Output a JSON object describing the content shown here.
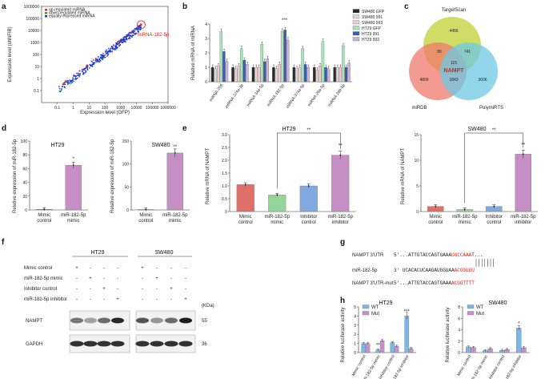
{
  "panel_labels": [
    "a",
    "b",
    "c",
    "d",
    "e",
    "f",
    "g",
    "h"
  ],
  "colors": {
    "sw480_gfp": "#2b2b2b",
    "sw480_991": "#d8d8d8",
    "sw480_993": "#f5c6d0",
    "ht29_gfp": "#a7e3b4",
    "ht29_991": "#3a5fa8",
    "ht29_993": "#c9b3d9",
    "mimic_ctrl": "#e0706a",
    "mimic": "#94d49a",
    "inhib_ctrl": "#7fa9df",
    "inhib": "#c58fc6",
    "wt": "#7fb6e8",
    "mut": "#c98fcf",
    "up": "#e0312e",
    "down": "#3a9a3a",
    "unch": "#1f3bd6",
    "venn_ts": "#c8d64a",
    "venn_db": "#f07a6c",
    "venn_pr": "#6ec8e6",
    "red": "#e0211b"
  },
  "chart_data": [
    {
      "panel": "a",
      "type": "scatter",
      "xlabel": "Expression level (GFP)",
      "ylabel": "Expression level (shNFIB)",
      "xlim": [
        0.01,
        1000000
      ],
      "ylim": [
        0.01,
        1000000
      ],
      "xticks": [
        "0.1",
        "1",
        "10",
        "100",
        "1000",
        "10000",
        "100000",
        "1000000"
      ],
      "yticks": [
        "0.1",
        "1",
        "10",
        "100",
        "1000",
        "10000",
        "100000",
        "1000000"
      ],
      "legend": [
        "up-regulated miRNA",
        "down-regulated miRNA",
        "equally expressed miRNA"
      ],
      "annotation": "miRNA-182-5p",
      "highlight": {
        "x": 20000,
        "y": 30000
      }
    },
    {
      "panel": "b",
      "type": "bar",
      "ylabel": "Relative mRNA of miRNA",
      "ylim": [
        0,
        4
      ],
      "yticks": [
        "0",
        "1",
        "2",
        "3",
        "4"
      ],
      "categories": [
        "miRNA-206",
        "miRNA-374a-3p",
        "miRNA-34a-5p",
        "miRNA-182-5p",
        "miRNA-374a-5p",
        "miRNA-26a-5p",
        "miRNA-26b-5p"
      ],
      "series": [
        {
          "name": "SW480 GFP",
          "values": [
            1,
            1,
            1,
            1,
            1,
            1,
            1
          ]
        },
        {
          "name": "SW480 991",
          "values": [
            0.9,
            0.9,
            1.0,
            0.9,
            0.9,
            0.8,
            1.0
          ]
        },
        {
          "name": "SW480 993",
          "values": [
            1.1,
            1.1,
            1.0,
            1.2,
            1.0,
            1.1,
            1.0
          ]
        },
        {
          "name": "HT29 GFP",
          "values": [
            3.5,
            2.3,
            2.6,
            3.5,
            2.3,
            2.8,
            2.5
          ]
        },
        {
          "name": "HT29 991",
          "values": [
            2.1,
            1.5,
            1.4,
            3.6,
            1.2,
            1.0,
            1.0
          ]
        },
        {
          "name": "HT29 993",
          "values": [
            1.4,
            1.2,
            1.6,
            2.9,
            1.0,
            0.9,
            1.3
          ]
        }
      ],
      "significance": "***"
    },
    {
      "panel": "c",
      "type": "venn",
      "sets": [
        "TargetScan",
        "miRDB",
        "PolymiRTS"
      ],
      "counts": {
        "ts_only": "4456",
        "db_only": "4809",
        "pr_only": "3606",
        "ts_db": "80",
        "ts_pr": "741",
        "db_pr": "1843",
        "center": "115"
      },
      "center_label": "NAMPT"
    },
    {
      "panel": "d",
      "type": "bar",
      "title": "HT29",
      "ylabel": "Relative expression of miR-182-5p",
      "ylim": [
        0,
        100
      ],
      "yticks": [
        "0",
        "20",
        "40",
        "60",
        "80",
        "100"
      ],
      "categories": [
        "Mimic control",
        "miR-182-5p mimic"
      ],
      "values": [
        1,
        65
      ],
      "significance": "*"
    },
    {
      "panel": "d2",
      "type": "bar",
      "title": "SW480",
      "ylabel": "Relative expression of miR-182-5p",
      "ylim": [
        0,
        150
      ],
      "yticks": [
        "0",
        "50",
        "100",
        "150"
      ],
      "categories": [
        "Mimic control",
        "miR-182-5p mimic"
      ],
      "values": [
        1,
        124
      ],
      "significance": "**"
    },
    {
      "panel": "e",
      "type": "bar",
      "title": "HT29",
      "ylabel": "Relative mRNA of NAMPT",
      "ylim": [
        0,
        3.0
      ],
      "yticks": [
        "0",
        "0.5",
        "1.0",
        "1.5",
        "2.0",
        "2.5",
        "3.0"
      ],
      "categories": [
        "Mimic control",
        "miR-182-5p mimic",
        "Inhibitor control",
        "miR-182-5p inhibitor"
      ],
      "values": [
        1.05,
        0.65,
        1.0,
        2.2
      ],
      "significance": "**"
    },
    {
      "panel": "e2",
      "type": "bar",
      "title": "SW480",
      "ylabel": "Relative mRNA of NAMPT",
      "ylim": [
        0,
        15
      ],
      "yticks": [
        "0",
        "5",
        "10",
        "15"
      ],
      "categories": [
        "Mimic control",
        "miR-182-5p mimic",
        "Inhibitor control",
        "miR-182-5p inhibitor"
      ],
      "values": [
        1.0,
        0.4,
        1.0,
        11.2
      ],
      "significance": "**"
    },
    {
      "panel": "h",
      "type": "bar",
      "title": "HT29",
      "ylabel": "Relative luciferase activity",
      "ylim": [
        0,
        5
      ],
      "yticks": [
        "0",
        "1",
        "2",
        "3",
        "4",
        "5"
      ],
      "categories": [
        "Mimic control",
        "miR-182-5p mimic",
        "Inhibitor control",
        "miR-182-5p inhibitor"
      ],
      "series": [
        {
          "name": "WT",
          "values": [
            1.0,
            0.3,
            1.1,
            4.0
          ]
        },
        {
          "name": "Mut",
          "values": [
            1.0,
            1.3,
            0.7,
            0.45
          ]
        }
      ],
      "significance": [
        "**",
        "***"
      ]
    },
    {
      "panel": "h2",
      "type": "bar",
      "title": "SW480",
      "ylabel": "Relative luciferase activity",
      "ylim": [
        0,
        8
      ],
      "yticks": [
        "0",
        "2",
        "4",
        "6",
        "8"
      ],
      "categories": [
        "Mimic control",
        "miR-182-5p mimic",
        "Inhibitor control",
        "miR-182-5p inhibitor"
      ],
      "series": [
        {
          "name": "WT",
          "values": [
            1.0,
            0.35,
            0.4,
            4.3
          ]
        },
        {
          "name": "Mut",
          "values": [
            0.9,
            0.7,
            0.55,
            0.85
          ]
        }
      ],
      "significance": [
        "*"
      ]
    }
  ],
  "western": {
    "groups": [
      "HT29",
      "SW480"
    ],
    "rows": [
      {
        "label": "Mimic control",
        "marks": [
          "+",
          "-",
          "-",
          "-",
          "+",
          "-",
          "-",
          "-"
        ]
      },
      {
        "label": "miR-182-5p mimic",
        "marks": [
          "-",
          "+",
          "-",
          "-",
          "-",
          "+",
          "-",
          "-"
        ]
      },
      {
        "label": "Inhibitor control",
        "marks": [
          "-",
          "-",
          "+",
          "-",
          "-",
          "-",
          "+",
          "-"
        ]
      },
      {
        "label": "miR-182-5p inhibitor",
        "marks": [
          "-",
          "-",
          "-",
          "+",
          "-",
          "-",
          "-",
          "+"
        ]
      }
    ],
    "kda_label": "(KDa)",
    "bands": [
      {
        "label": "NAMPT",
        "kda": "55"
      },
      {
        "label": "GAPDH",
        "kda": "36"
      }
    ]
  },
  "sequences": {
    "row1": {
      "label": "NAMPT 3'UTR",
      "prefix": "5'...ATTGTACCAGTGAAA",
      "seed": "UGCCAAA",
      "suffix": "T..."
    },
    "row2": {
      "label": "miR-182-5p",
      "prefix": "3' UCACACUCAAGAUGGUAA",
      "seed": "ACGGUUU",
      "suffix": ""
    },
    "row3": {
      "label": "NAMPT 3'UTR-mut",
      "prefix": "5'...ATTGTACCAGTGAAA",
      "seed": "ACGGTTTT",
      "suffix": ""
    }
  }
}
